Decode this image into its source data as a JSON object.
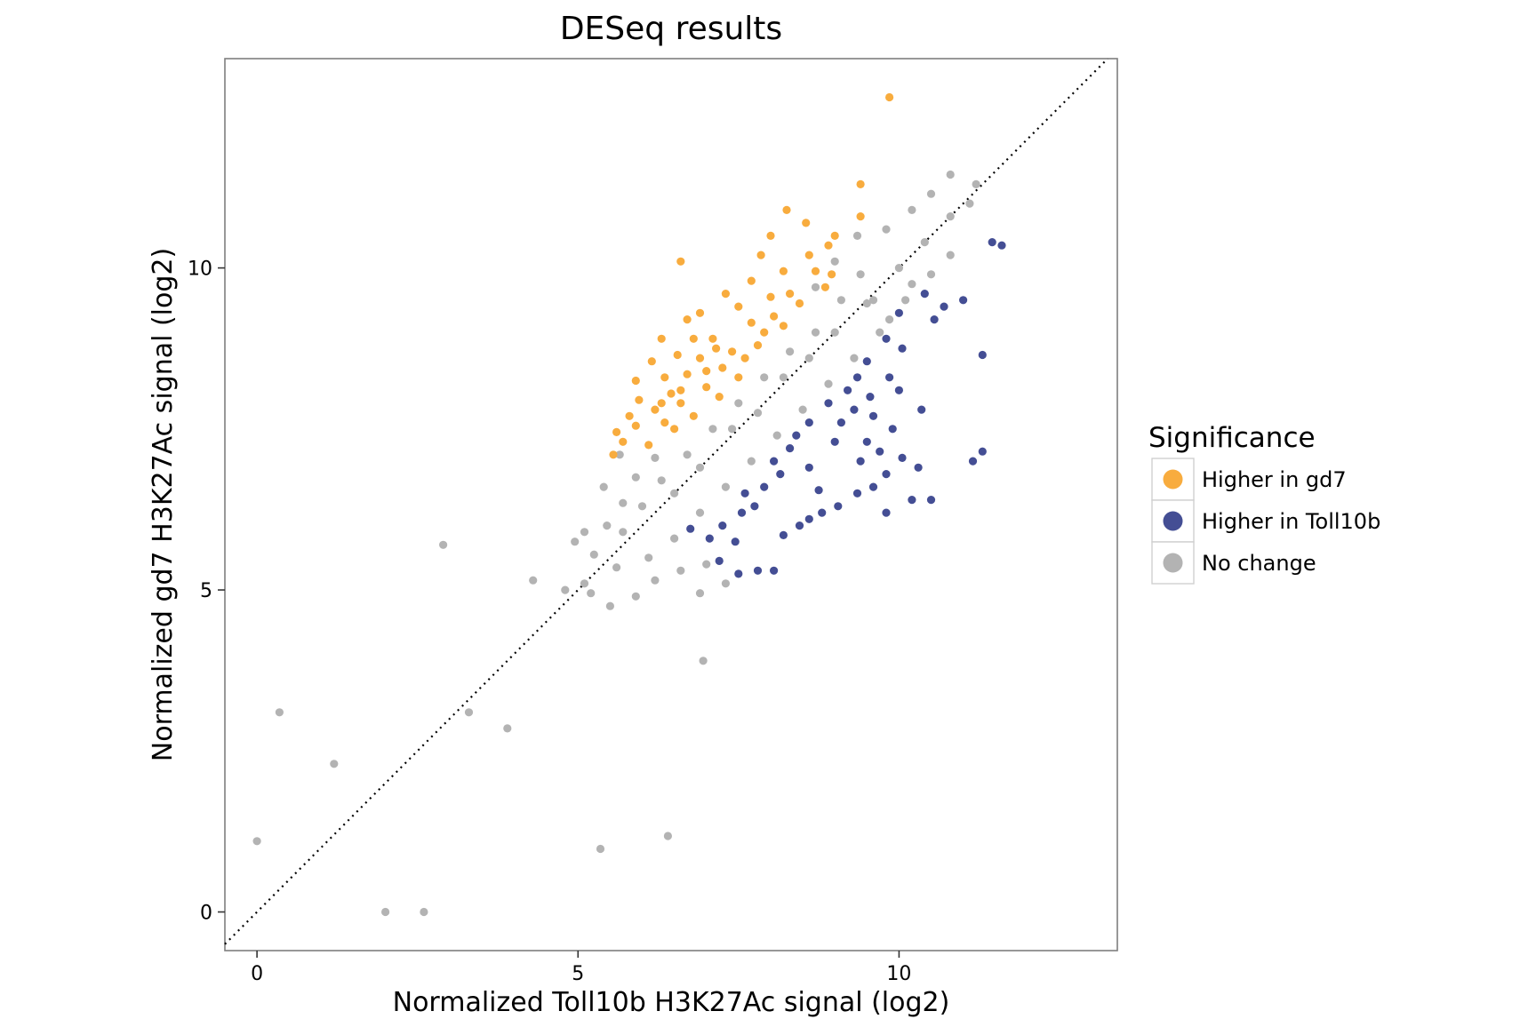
{
  "chart_data": {
    "type": "scatter",
    "title": "DESeq results",
    "xlabel": "Normalized Toll10b H3K27Ac signal (log2)",
    "ylabel": "Normalized gd7 H3K27Ac signal (log2)",
    "xlim": [
      -0.5,
      13.4
    ],
    "ylim": [
      -0.6,
      13.25
    ],
    "x_ticks": [
      0,
      5,
      10
    ],
    "y_ticks": [
      0,
      5,
      10
    ],
    "grid": false,
    "reference_line": {
      "style": "dotted",
      "slope": 1,
      "intercept": 0
    },
    "legend": {
      "title": "Significance",
      "placement": "right",
      "entries": [
        "Higher in gd7",
        "Higher in Toll10b",
        "No change"
      ]
    },
    "series": [
      {
        "name": "Higher in gd7",
        "color": "#F8AC3E",
        "points": [
          [
            9.85,
            12.65
          ],
          [
            9.4,
            11.3
          ],
          [
            8.25,
            10.9
          ],
          [
            8.55,
            10.7
          ],
          [
            8.0,
            10.5
          ],
          [
            9.4,
            10.8
          ],
          [
            9.0,
            10.5
          ],
          [
            8.9,
            10.35
          ],
          [
            8.6,
            10.2
          ],
          [
            7.85,
            10.2
          ],
          [
            6.6,
            10.1
          ],
          [
            8.2,
            9.95
          ],
          [
            8.7,
            9.95
          ],
          [
            7.7,
            9.8
          ],
          [
            8.85,
            9.7
          ],
          [
            7.3,
            9.6
          ],
          [
            8.0,
            9.55
          ],
          [
            6.9,
            9.3
          ],
          [
            8.45,
            9.45
          ],
          [
            7.5,
            9.4
          ],
          [
            6.7,
            9.2
          ],
          [
            8.05,
            9.25
          ],
          [
            7.7,
            9.15
          ],
          [
            6.3,
            8.9
          ],
          [
            7.1,
            8.9
          ],
          [
            7.9,
            9.0
          ],
          [
            6.15,
            8.55
          ],
          [
            6.55,
            8.65
          ],
          [
            6.9,
            8.6
          ],
          [
            7.4,
            8.7
          ],
          [
            5.9,
            8.25
          ],
          [
            6.35,
            8.3
          ],
          [
            6.7,
            8.35
          ],
          [
            7.25,
            8.45
          ],
          [
            5.95,
            7.95
          ],
          [
            6.45,
            8.05
          ],
          [
            7.0,
            8.15
          ],
          [
            5.8,
            7.7
          ],
          [
            6.2,
            7.8
          ],
          [
            6.6,
            7.9
          ],
          [
            5.6,
            7.45
          ],
          [
            5.9,
            7.55
          ],
          [
            6.35,
            7.6
          ],
          [
            5.7,
            7.3
          ],
          [
            6.1,
            7.25
          ],
          [
            5.55,
            7.1
          ],
          [
            6.5,
            7.5
          ],
          [
            6.8,
            7.7
          ],
          [
            7.2,
            8.0
          ],
          [
            7.5,
            8.3
          ],
          [
            7.0,
            8.4
          ],
          [
            6.6,
            8.1
          ],
          [
            6.3,
            7.9
          ],
          [
            7.6,
            8.6
          ],
          [
            7.15,
            8.75
          ],
          [
            6.8,
            8.9
          ],
          [
            7.8,
            8.8
          ],
          [
            8.2,
            9.1
          ],
          [
            8.3,
            9.6
          ],
          [
            8.95,
            9.9
          ]
        ]
      },
      {
        "name": "Higher in Toll10b",
        "color": "#444E94",
        "points": [
          [
            11.6,
            10.35
          ],
          [
            11.45,
            10.4
          ],
          [
            11.0,
            9.5
          ],
          [
            10.7,
            9.4
          ],
          [
            10.55,
            9.2
          ],
          [
            10.4,
            9.6
          ],
          [
            10.0,
            9.3
          ],
          [
            11.3,
            8.65
          ],
          [
            10.05,
            8.75
          ],
          [
            9.8,
            8.9
          ],
          [
            9.5,
            8.55
          ],
          [
            9.85,
            8.3
          ],
          [
            10.0,
            8.1
          ],
          [
            9.55,
            8.0
          ],
          [
            10.35,
            7.8
          ],
          [
            9.6,
            7.7
          ],
          [
            9.3,
            7.8
          ],
          [
            9.9,
            7.5
          ],
          [
            9.5,
            7.3
          ],
          [
            10.05,
            7.05
          ],
          [
            11.3,
            7.15
          ],
          [
            11.15,
            7.0
          ],
          [
            9.7,
            7.15
          ],
          [
            9.4,
            7.0
          ],
          [
            9.0,
            7.3
          ],
          [
            10.3,
            6.9
          ],
          [
            9.8,
            6.8
          ],
          [
            9.6,
            6.6
          ],
          [
            9.35,
            6.5
          ],
          [
            10.5,
            6.4
          ],
          [
            10.2,
            6.4
          ],
          [
            9.05,
            6.3
          ],
          [
            8.8,
            6.2
          ],
          [
            9.8,
            6.2
          ],
          [
            8.75,
            6.55
          ],
          [
            8.6,
            6.9
          ],
          [
            8.3,
            7.2
          ],
          [
            8.15,
            6.8
          ],
          [
            7.9,
            6.6
          ],
          [
            7.75,
            6.3
          ],
          [
            7.55,
            6.2
          ],
          [
            7.25,
            6.0
          ],
          [
            7.05,
            5.8
          ],
          [
            6.75,
            5.95
          ],
          [
            7.45,
            5.75
          ],
          [
            7.2,
            5.45
          ],
          [
            7.5,
            5.25
          ],
          [
            7.8,
            5.3
          ],
          [
            8.05,
            5.3
          ],
          [
            8.45,
            6.0
          ],
          [
            8.2,
            5.85
          ],
          [
            8.6,
            6.1
          ],
          [
            9.1,
            7.6
          ],
          [
            9.35,
            8.3
          ],
          [
            9.2,
            8.1
          ],
          [
            8.9,
            7.9
          ],
          [
            8.6,
            7.6
          ],
          [
            8.4,
            7.4
          ],
          [
            8.05,
            7.0
          ],
          [
            7.6,
            6.5
          ]
        ]
      },
      {
        "name": "No change",
        "color": "#B3B3B3",
        "points": [
          [
            0.0,
            1.1
          ],
          [
            0.35,
            3.1
          ],
          [
            1.2,
            2.3
          ],
          [
            2.0,
            0.0
          ],
          [
            2.6,
            0.0
          ],
          [
            2.9,
            5.7
          ],
          [
            3.3,
            3.1
          ],
          [
            3.9,
            2.85
          ],
          [
            5.35,
            0.98
          ],
          [
            6.4,
            1.18
          ],
          [
            6.95,
            3.9
          ],
          [
            4.3,
            5.15
          ],
          [
            4.8,
            5.0
          ],
          [
            5.1,
            5.1
          ],
          [
            5.2,
            4.95
          ],
          [
            5.5,
            4.75
          ],
          [
            4.95,
            5.75
          ],
          [
            5.25,
            5.55
          ],
          [
            5.45,
            6.0
          ],
          [
            5.7,
            6.35
          ],
          [
            5.9,
            6.75
          ],
          [
            6.2,
            7.05
          ],
          [
            5.65,
            7.1
          ],
          [
            5.4,
            6.6
          ],
          [
            5.1,
            5.9
          ],
          [
            6.5,
            6.5
          ],
          [
            6.9,
            6.9
          ],
          [
            7.4,
            7.5
          ],
          [
            7.8,
            7.75
          ],
          [
            8.2,
            8.3
          ],
          [
            8.6,
            8.6
          ],
          [
            9.0,
            9.0
          ],
          [
            9.5,
            9.45
          ],
          [
            10.0,
            10.0
          ],
          [
            10.4,
            10.4
          ],
          [
            10.8,
            10.8
          ],
          [
            11.1,
            11.0
          ],
          [
            11.2,
            11.3
          ],
          [
            10.8,
            11.45
          ],
          [
            10.5,
            11.15
          ],
          [
            10.2,
            10.9
          ],
          [
            9.8,
            10.6
          ],
          [
            9.6,
            9.5
          ],
          [
            9.4,
            9.9
          ],
          [
            9.1,
            9.5
          ],
          [
            8.7,
            9.0
          ],
          [
            8.3,
            8.7
          ],
          [
            7.9,
            8.3
          ],
          [
            7.5,
            7.9
          ],
          [
            7.1,
            7.5
          ],
          [
            6.7,
            7.1
          ],
          [
            6.3,
            6.7
          ],
          [
            6.0,
            6.3
          ],
          [
            5.7,
            5.9
          ],
          [
            6.1,
            5.5
          ],
          [
            6.5,
            5.8
          ],
          [
            6.9,
            6.2
          ],
          [
            7.3,
            6.6
          ],
          [
            7.7,
            7.0
          ],
          [
            8.1,
            7.4
          ],
          [
            8.5,
            7.8
          ],
          [
            8.9,
            8.2
          ],
          [
            9.3,
            8.6
          ],
          [
            9.7,
            9.0
          ],
          [
            10.1,
            9.5
          ],
          [
            10.5,
            9.9
          ],
          [
            10.8,
            10.2
          ],
          [
            6.2,
            5.15
          ],
          [
            6.6,
            5.3
          ],
          [
            7.0,
            5.4
          ],
          [
            7.3,
            5.1
          ],
          [
            6.9,
            4.95
          ],
          [
            5.9,
            4.9
          ],
          [
            5.6,
            5.35
          ],
          [
            9.35,
            10.5
          ],
          [
            9.0,
            10.1
          ],
          [
            8.7,
            9.7
          ],
          [
            9.85,
            9.2
          ],
          [
            10.2,
            9.75
          ]
        ]
      }
    ]
  }
}
